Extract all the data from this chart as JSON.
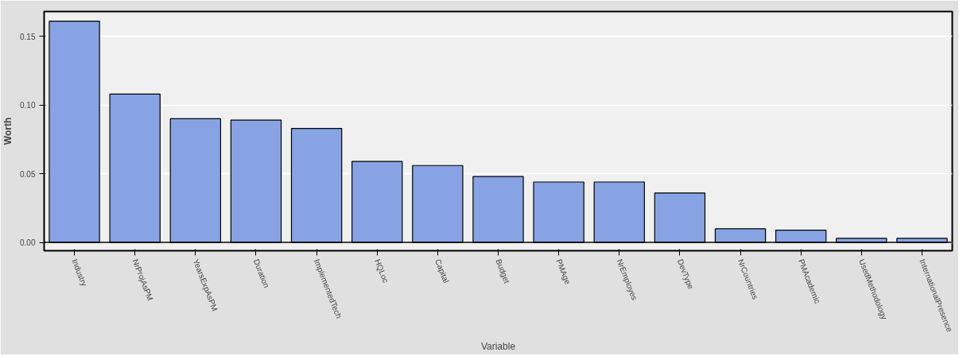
{
  "chart_data": {
    "type": "bar",
    "xlabel": "Variable",
    "ylabel": "Worth",
    "categories": [
      "Industry",
      "NrProjAsPM",
      "YearsExpAsPM",
      "Duration",
      "ImplementedTech",
      "HQLoc",
      "Capital",
      "Budget",
      "PMAge",
      "NrEmployes",
      "DevType",
      "NrCountries",
      "PMAcademic",
      "UsedMethodology",
      "InternationalPresence"
    ],
    "values": [
      0.161,
      0.108,
      0.09,
      0.089,
      0.083,
      0.059,
      0.056,
      0.048,
      0.044,
      0.044,
      0.036,
      0.01,
      0.009,
      0.003,
      0.003
    ],
    "color": "#87a3e3",
    "ylim": [
      -0.006,
      0.168
    ],
    "yticks": [
      {
        "value": 0,
        "label": "0.00"
      },
      {
        "value": 0.05,
        "label": "0.05"
      },
      {
        "value": 0.1,
        "label": "0.10"
      },
      {
        "value": 0.15,
        "label": "0.15"
      }
    ],
    "grid": "y"
  }
}
